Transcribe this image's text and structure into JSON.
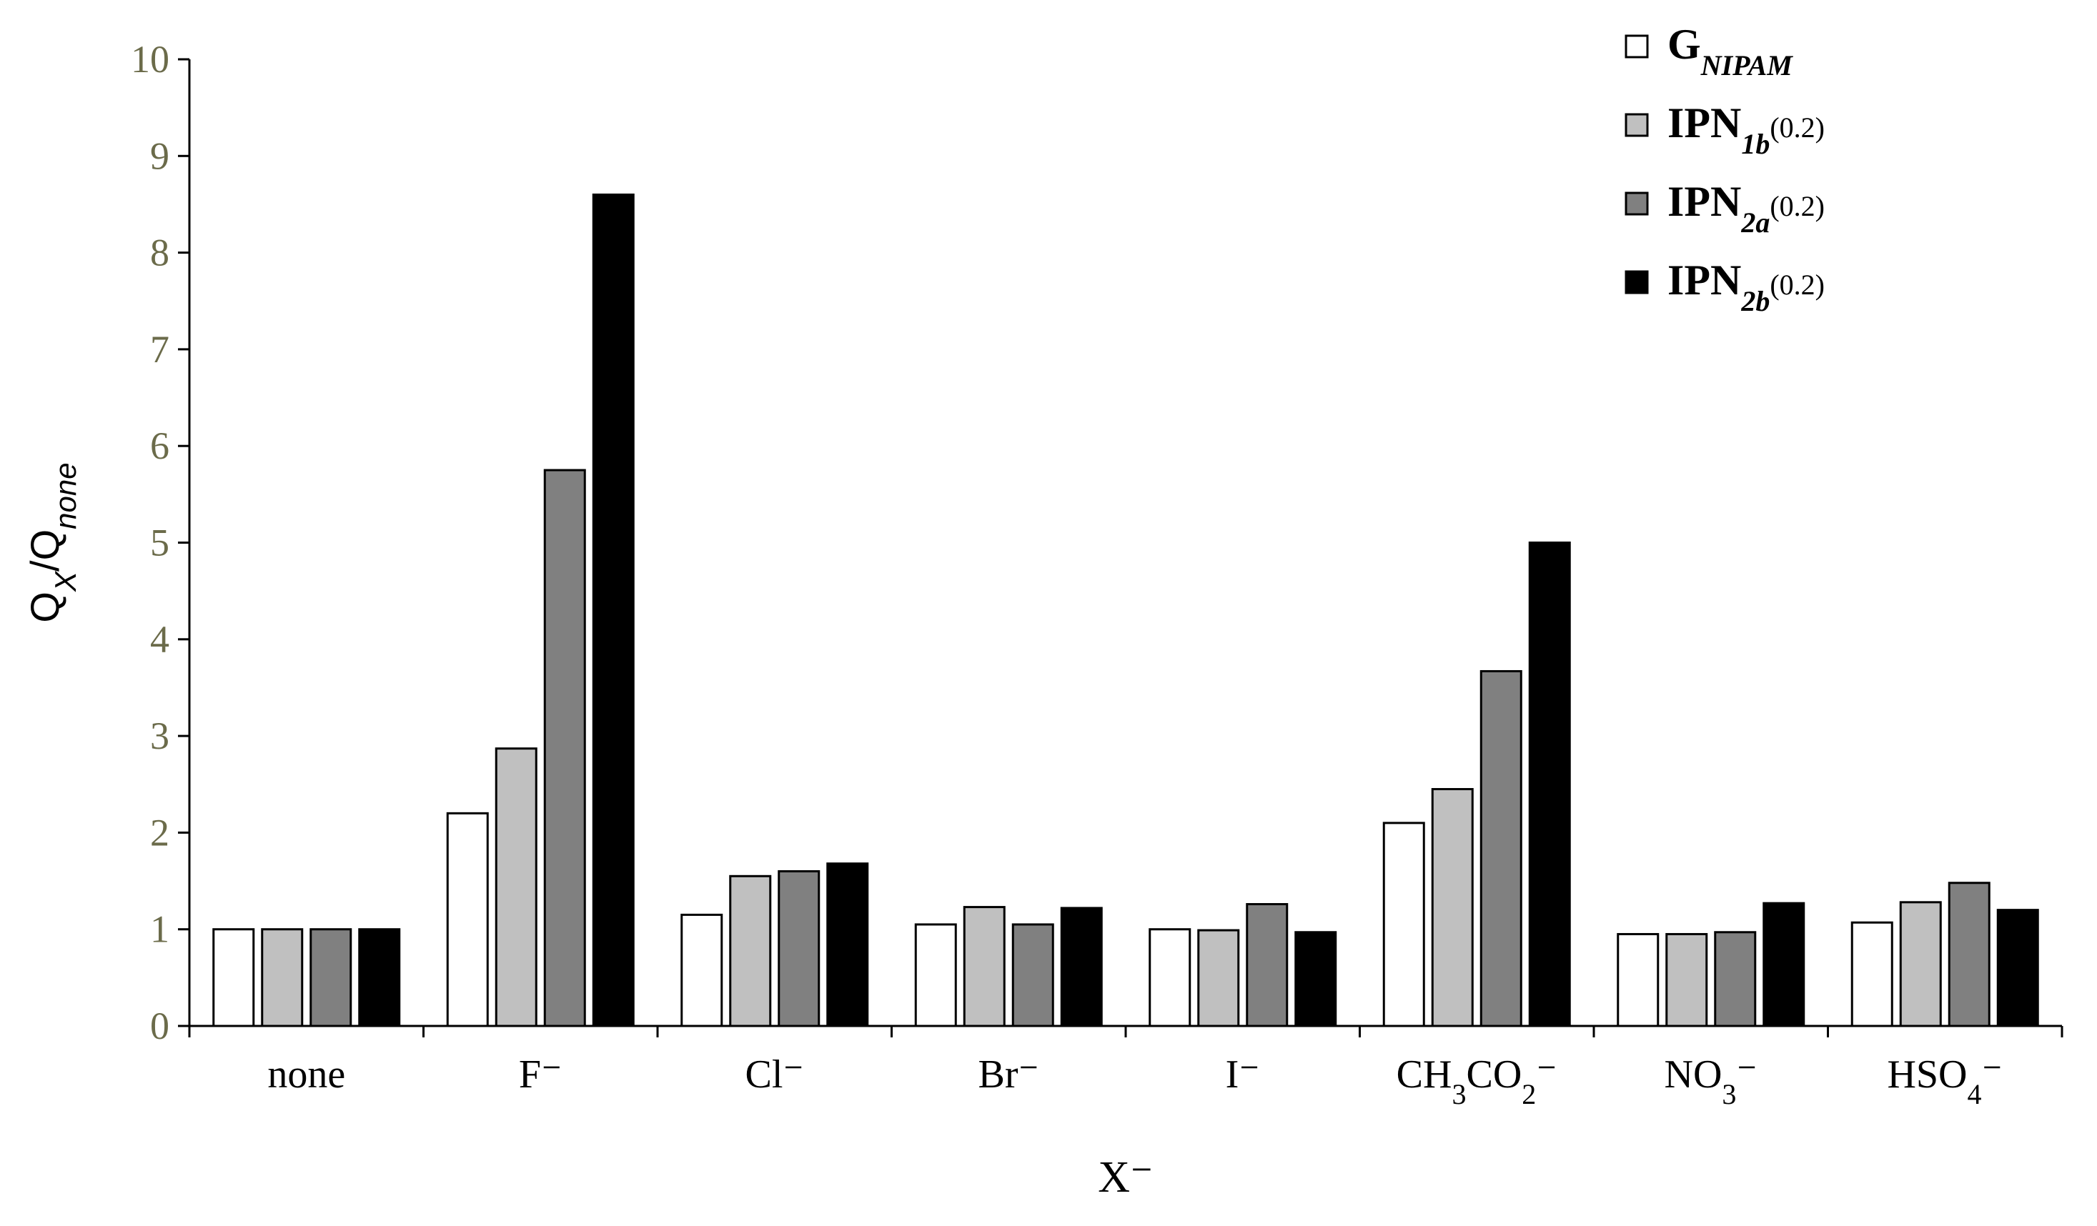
{
  "chart_data": {
    "type": "bar",
    "title": "",
    "xlabel": "X⁻",
    "ylabel": {
      "main": "Q",
      "sub1": "X",
      "sep": "/Q",
      "sub2": "none"
    },
    "ylim": [
      0,
      10
    ],
    "yticks": [
      "0",
      "1",
      "2",
      "3",
      "4",
      "5",
      "6",
      "7",
      "8",
      "9",
      "10"
    ],
    "grid": false,
    "legend_position": "top-right",
    "categories": [
      {
        "base": "none",
        "sub": "",
        "tail": ""
      },
      {
        "base": "F⁻",
        "sub": "",
        "tail": ""
      },
      {
        "base": "Cl⁻",
        "sub": "",
        "tail": ""
      },
      {
        "base": "Br⁻",
        "sub": "",
        "tail": ""
      },
      {
        "base": "I⁻",
        "sub": "",
        "tail": ""
      },
      {
        "base": "CH",
        "sub": "3",
        "tail": "CO",
        "sub2": "2",
        "end": "⁻"
      },
      {
        "base": "NO",
        "sub": "3",
        "tail": "⁻"
      },
      {
        "base": "HSO",
        "sub": "4",
        "tail": "⁻"
      }
    ],
    "series": [
      {
        "name": "G",
        "sub": "NIPAM",
        "sub_tail": "",
        "color": "#ffffff",
        "values": [
          1.0,
          2.2,
          1.15,
          1.05,
          1.0,
          2.1,
          0.95,
          1.07
        ]
      },
      {
        "name": "IPN",
        "sub": "1b",
        "sub_tail": "(0.2)",
        "color": "#c0c0c0",
        "values": [
          1.0,
          2.87,
          1.55,
          1.23,
          0.99,
          2.45,
          0.95,
          1.28
        ]
      },
      {
        "name": "IPN",
        "sub": "2a",
        "sub_tail": "(0.2)",
        "color": "#808080",
        "values": [
          1.0,
          5.75,
          1.6,
          1.05,
          1.26,
          3.67,
          0.97,
          1.48
        ]
      },
      {
        "name": "IPN",
        "sub": "2b",
        "sub_tail": "(0.2)",
        "color": "#000000",
        "values": [
          1.0,
          8.6,
          1.68,
          1.22,
          0.97,
          5.0,
          1.27,
          1.2
        ]
      }
    ]
  }
}
